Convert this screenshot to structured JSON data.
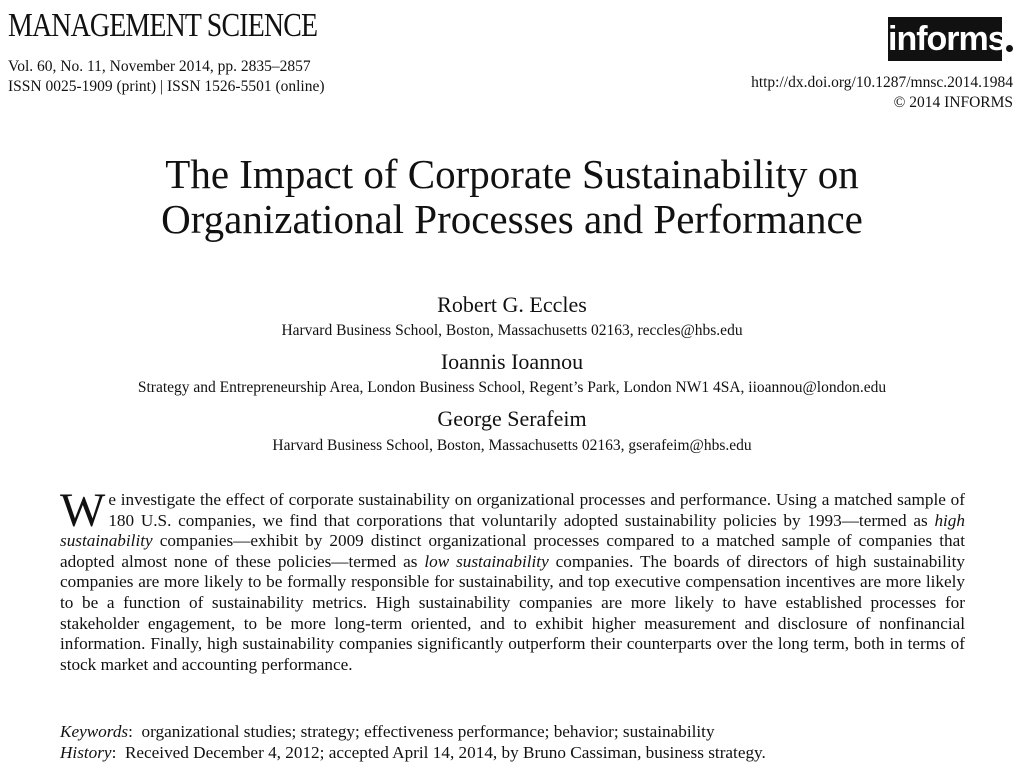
{
  "header": {
    "journal": "MANAGEMENT SCIENCE",
    "volume_line": "Vol. 60, No. 11, November 2014, pp. 2835–2857",
    "issn_line": "ISSN 0025-1909 (print) | ISSN 1526-5501 (online)",
    "logo_text": "informs",
    "doi": "http://dx.doi.org/10.1287/mnsc.2014.1984",
    "copyright": "© 2014 INFORMS"
  },
  "title": {
    "line1": "The Impact of Corporate Sustainability on",
    "line2": "Organizational Processes and Performance"
  },
  "authors": [
    {
      "name": "Robert G. Eccles",
      "affiliation": "Harvard Business School, Boston, Massachusetts 02163, reccles@hbs.edu"
    },
    {
      "name": "Ioannis Ioannou",
      "affiliation": "Strategy and Entrepreneurship Area, London Business School, Regent’s Park, London NW1 4SA, iioannou@london.edu"
    },
    {
      "name": "George Serafeim",
      "affiliation": "Harvard Business School, Boston, Massachusetts 02163, gserafeim@hbs.edu"
    }
  ],
  "abstract": {
    "dropcap": "W",
    "part1": "e investigate the effect of corporate sustainability on organizational processes and performance. Using a matched sample of 180 U.S. companies, we find that corporations that voluntarily adopted sustainability policies by 1993—termed as ",
    "em1": "high sustainability",
    "part2": " companies—exhibit by 2009 distinct organizational processes compared to a matched sample of companies that adopted almost none of these policies—termed as ",
    "em2": "low sustainability",
    "part3": " companies. The boards of directors of high sustainability companies are more likely to be formally responsible for sustainability, and top executive compensation incentives are more likely to be a function of sustainability metrics. High sustainability companies are more likely to have established processes for stakeholder engagement, to be more long-term oriented, and to exhibit higher measurement and disclosure of nonfinancial information. Finally, high sustainability companies significantly outperform their counterparts over the long term, both in terms of stock market and accounting performance."
  },
  "keywords": {
    "label": "Keywords",
    "text": "organizational studies; strategy; effectiveness performance; behavior; sustainability"
  },
  "history": {
    "label": "History",
    "text": "Received December 4, 2012; accepted April 14, 2014, by Bruno Cassiman, business strategy."
  }
}
